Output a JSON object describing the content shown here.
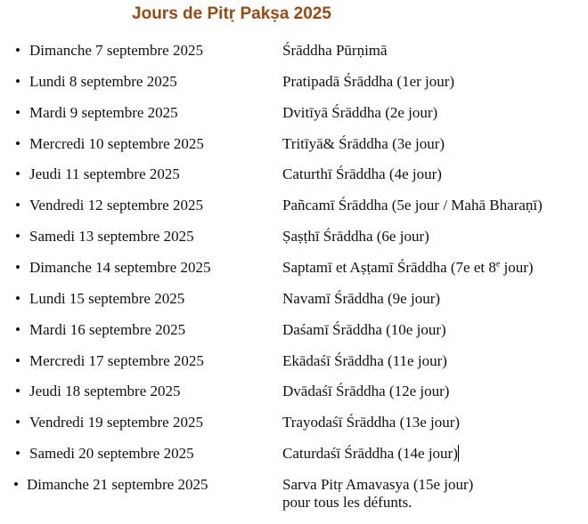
{
  "title": "Jours de Pitṛ Pakṣa 2025",
  "bullet": "•",
  "rows": [
    {
      "date": "Dimanche 7 septembre 2025",
      "name": " Śrāddha Pūrṇimā"
    },
    {
      "date": "Lundi 8 septembre 2025",
      "name": "Pratipadā Śrāddha (1er jour)"
    },
    {
      "date": "Mardi 9 septembre 2025",
      "name": "Dvitīyā Śrāddha (2e jour)"
    },
    {
      "date": "Mercredi 10 septembre 2025",
      "name": "Tritīyā& Śrāddha (3e jour)"
    },
    {
      "date": "Jeudi 11 septembre 2025",
      "name": "Caturthī Śrāddha (4e jour)"
    },
    {
      "date": "Vendredi 12 septembre 2025",
      "name": "Pañcamī Śrāddha (5e jour / Mahā Bharaṇī)"
    },
    {
      "date": "Samedi 13 septembre 2025",
      "name": "Ṣaṣṭhī Śrāddha (6e jour)"
    },
    {
      "date": "Dimanche 14 septembre 2025",
      "name": "Saptamī et Aṣṭamī Śrāddha (7e et 8",
      "sup": "e",
      "name_end": " jour)"
    },
    {
      "date": "Lundi 15 septembre 2025",
      "name": "Navamī Śrāddha (9e jour)"
    },
    {
      "date": "Mardi 16 septembre 2025",
      "name": "Daśamī Śrāddha (10e jour)"
    },
    {
      "date": "Mercredi 17 septembre 2025",
      "name": "Ekādaśī Śrāddha (11e jour)"
    },
    {
      "date": "Jeudi 18 septembre 2025",
      "name": "Dvādaśī Śrāddha (12e jour)"
    },
    {
      "date": "Vendredi 19 septembre 2025",
      "name": "Trayodaśī Śrāddha (13e jour)"
    },
    {
      "date": "Samedi 20 septembre 2025",
      "name": "Caturdaśī Śrāddha (14e jour)"
    },
    {
      "date": "Dimanche 21 septembre 2025",
      "name": "Sarva Pitṛ Amavasya (15e jour)",
      "name_line2": "pour tous les défunts."
    }
  ]
}
